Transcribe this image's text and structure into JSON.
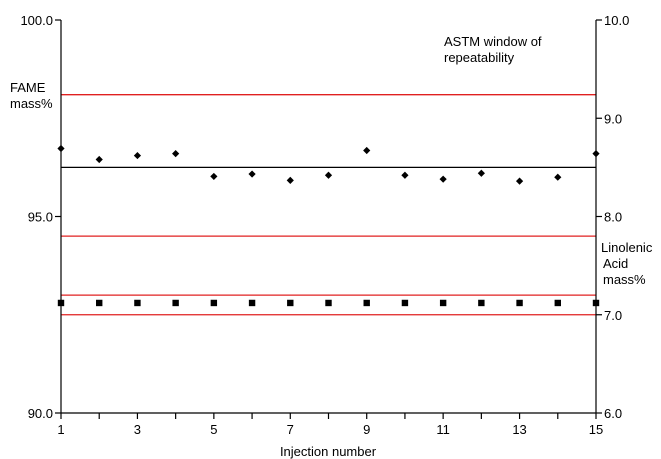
{
  "chart_data": {
    "type": "scatter",
    "x_axis": {
      "label": "Injection number",
      "range": [
        1,
        15
      ],
      "tick_values": [
        1,
        2,
        3,
        4,
        5,
        6,
        7,
        8,
        9,
        10,
        11,
        12,
        13,
        14,
        15
      ],
      "labeled_ticks": [
        "1",
        "3",
        "5",
        "7",
        "9",
        "11",
        "13",
        "15"
      ]
    },
    "y_left_axis": {
      "label_lines": [
        "FAME",
        "mass%"
      ],
      "range": [
        90.0,
        100.0
      ],
      "tick_labels": [
        "100.0",
        "95.0",
        "90.0"
      ],
      "tick_values": [
        100.0,
        95.0,
        90.0
      ]
    },
    "y_right_axis": {
      "label_lines": [
        "Linolenic",
        "Acid",
        "mass%"
      ],
      "range": [
        6.0,
        10.0
      ],
      "tick_labels": [
        "10.0",
        "9.0",
        "8.0",
        "7.0",
        "6.0"
      ],
      "tick_values": [
        10.0,
        9.0,
        8.0,
        7.0,
        6.0
      ]
    },
    "annotation_lines": [
      "ASTM window of",
      "repeatability"
    ],
    "series": [
      {
        "axis": "left",
        "marker": "diamond",
        "color": "#000000",
        "x": [
          1,
          2,
          3,
          4,
          5,
          6,
          7,
          8,
          9,
          10,
          11,
          12,
          13,
          14,
          15
        ],
        "y": [
          96.73,
          96.45,
          96.55,
          96.6,
          96.02,
          96.08,
          95.92,
          96.05,
          96.68,
          96.05,
          95.95,
          96.1,
          95.9,
          96.0,
          96.6
        ]
      },
      {
        "axis": "right",
        "marker": "square",
        "color": "#000000",
        "x": [
          1,
          2,
          3,
          4,
          5,
          6,
          7,
          8,
          9,
          10,
          11,
          12,
          13,
          14,
          15
        ],
        "y": [
          7.12,
          7.12,
          7.12,
          7.12,
          7.12,
          7.12,
          7.12,
          7.12,
          7.12,
          7.12,
          7.12,
          7.12,
          7.12,
          7.12,
          7.12
        ]
      }
    ],
    "reference_lines": [
      {
        "axis": "left",
        "value": 96.25,
        "color": "#000000"
      },
      {
        "axis": "left",
        "value": 98.1,
        "color": "#e02020"
      },
      {
        "axis": "left",
        "value": 94.5,
        "color": "#e02020"
      },
      {
        "axis": "right",
        "value": 7.2,
        "color": "#e02020"
      },
      {
        "axis": "right",
        "value": 7.0,
        "color": "#e02020"
      }
    ]
  }
}
